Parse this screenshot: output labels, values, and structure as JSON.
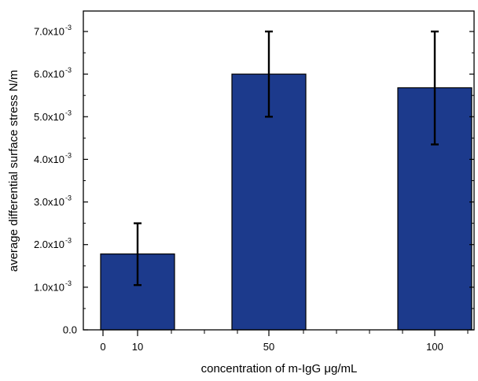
{
  "chart_data": {
    "type": "bar",
    "xlabel": "concentration of m-IgG μg/mL",
    "ylabel": "average differential surface stress N/m",
    "ylim": [
      0,
      0.0075
    ],
    "grid": false,
    "bar_color": "#1c3a8c",
    "error_bar_color": "#000000",
    "x_ticks": [
      {
        "value": 0,
        "label": "0"
      },
      {
        "value": 10,
        "label": "10"
      },
      {
        "value": 50,
        "label": "50"
      },
      {
        "value": 100,
        "label": "100"
      }
    ],
    "y_ticks": [
      {
        "value": 0.0,
        "mantissa": "0.0",
        "exp": ""
      },
      {
        "value": 0.001,
        "mantissa": "1.0x10",
        "exp": "-3"
      },
      {
        "value": 0.002,
        "mantissa": "2.0x10",
        "exp": "-3"
      },
      {
        "value": 0.003,
        "mantissa": "3.0x10",
        "exp": "-3"
      },
      {
        "value": 0.004,
        "mantissa": "4.0x10",
        "exp": "-3"
      },
      {
        "value": 0.005,
        "mantissa": "5.0x10",
        "exp": "-3"
      },
      {
        "value": 0.006,
        "mantissa": "6.0x10",
        "exp": "-3"
      },
      {
        "value": 0.007,
        "mantissa": "7.0x10",
        "exp": "-3"
      }
    ],
    "bars": [
      {
        "x": 10,
        "value": 0.00178,
        "err_low": 0.00105,
        "err_high": 0.0025
      },
      {
        "x": 50,
        "value": 0.006,
        "err_low": 0.005,
        "err_high": 0.007
      },
      {
        "x": 100,
        "value": 0.00568,
        "err_low": 0.00435,
        "err_high": 0.007
      }
    ]
  }
}
